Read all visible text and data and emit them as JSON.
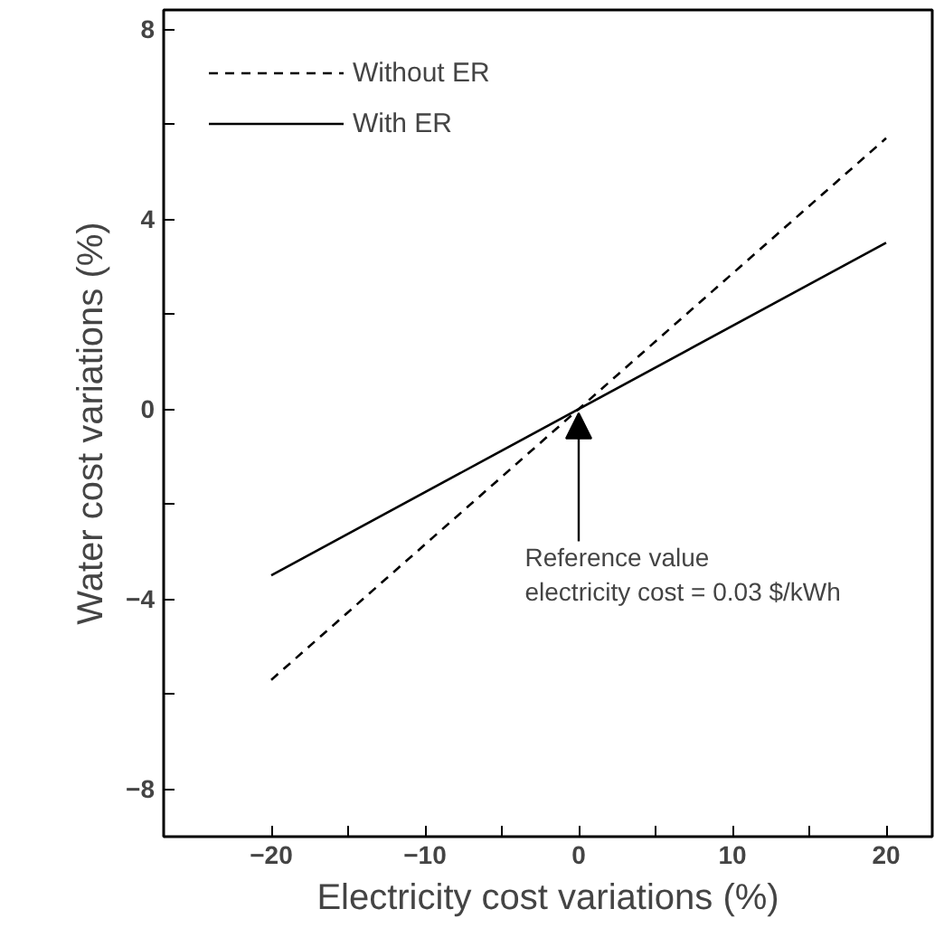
{
  "chart_data": {
    "type": "line",
    "xlabel": "Electricity cost variations (%)",
    "ylabel": "Water cost variations (%)",
    "x": [
      -20,
      20
    ],
    "series": [
      {
        "name": "Without ER",
        "color": "#000000",
        "values": [
          -5.7,
          5.7
        ],
        "line_style": "dashed"
      },
      {
        "name": "With ER",
        "color": "#000000",
        "values": [
          -3.5,
          3.5
        ],
        "line_style": "solid"
      }
    ],
    "xlim": [
      -27,
      23
    ],
    "ylim": [
      -9,
      8.4
    ],
    "xticks": [
      -20,
      {
        "value": -15,
        "label": null
      },
      -10,
      {
        "value": -5,
        "label": null
      },
      0,
      {
        "value": 5,
        "label": null
      },
      10,
      {
        "value": 15,
        "label": null
      },
      20
    ],
    "yticks": [
      -8,
      {
        "value": -6,
        "label": null
      },
      -4,
      {
        "value": -2,
        "label": null
      },
      0,
      {
        "value": 2,
        "label": null
      },
      4,
      {
        "value": 6,
        "label": null
      },
      8
    ],
    "annotations": [
      {
        "text": "Reference value\nelectricity cost = 0.03 $/kWh",
        "x": 0,
        "y": 0
      }
    ],
    "legend": "top left",
    "grid": false,
    "marker": "none"
  }
}
